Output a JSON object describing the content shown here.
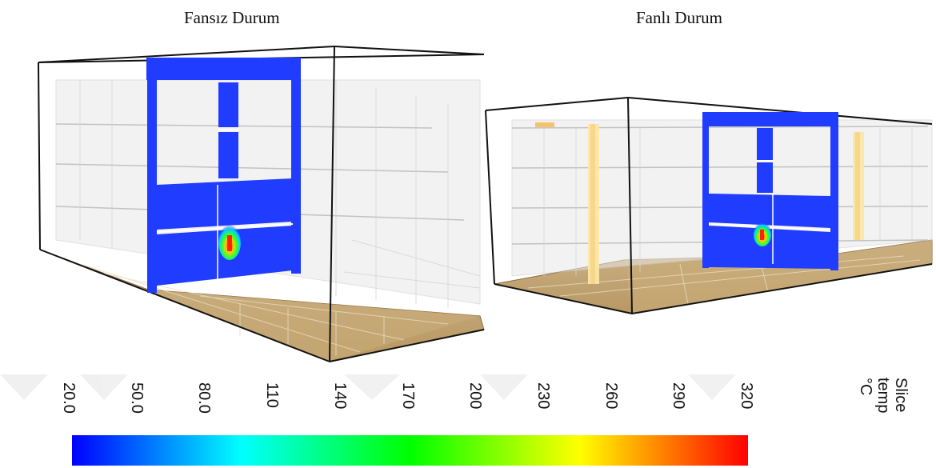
{
  "panels": {
    "left_title": "Fansız Durum",
    "right_title": "Fanlı Durum"
  },
  "colorbar": {
    "ticks": [
      "20.0",
      "50.0",
      "80.0",
      "110",
      "140",
      "170",
      "200",
      "230",
      "260",
      "290",
      "320"
    ],
    "label_line1": "Slice",
    "label_line2": "temp",
    "unit": "°C",
    "colors": [
      "#0000ff",
      "#00ffff",
      "#00ff00",
      "#ffff00",
      "#ff0000"
    ]
  }
}
